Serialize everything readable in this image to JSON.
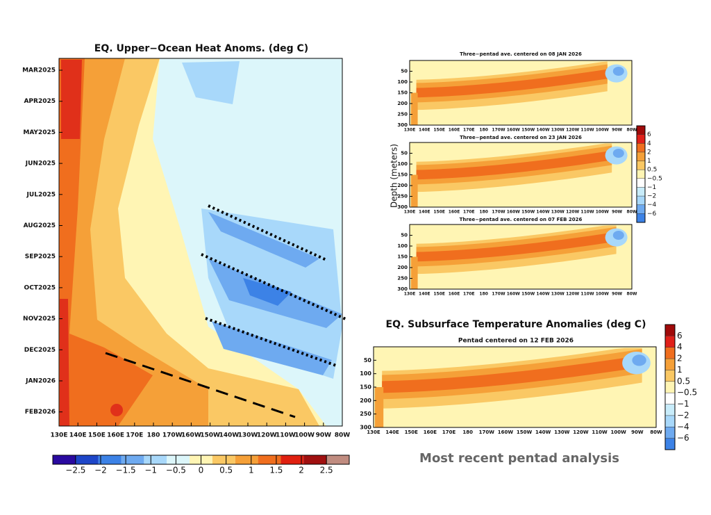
{
  "hovmoller": {
    "title": "EQ. Upper−Ocean Heat Anoms. (deg C)",
    "dates": [
      "MAR2025",
      "APR2025",
      "MAY2025",
      "JUN2025",
      "JUL2025",
      "AUG2025",
      "SEP2025",
      "OCT2025",
      "NOV2025",
      "DEC2025",
      "JAN2026",
      "FEB2026"
    ],
    "colorbar": {
      "ticks": [
        {
          "value": -2.5,
          "label": "−2.5"
        },
        {
          "value": -2,
          "label": "−2"
        },
        {
          "value": -1.5,
          "label": "−1.5"
        },
        {
          "value": -1,
          "label": "−1"
        },
        {
          "value": -0.5,
          "label": "−0.5"
        },
        0,
        0.5,
        1,
        1.5,
        2,
        2.5
      ]
    }
  },
  "longitudes": [
    "130E",
    "140E",
    "150E",
    "160E",
    "170E",
    "180",
    "170W",
    "160W",
    "150W",
    "140W",
    "130W",
    "120W",
    "110W",
    "100W",
    "90W",
    "80W"
  ],
  "depth_sections": {
    "y_label": "Depth (meters)",
    "depth_lim": [
      0,
      300
    ],
    "depth_ticks": [
      50,
      100,
      150,
      200,
      250,
      300
    ],
    "panels": [
      {
        "title": "Three−pentad ave. centered on 08 JAN 2026"
      },
      {
        "title": "Three−pentad ave. centered on 23 JAN 2026"
      },
      {
        "title": "Three−pentad ave. centered on 07 FEB 2026"
      }
    ],
    "colorbar": {
      "ticks": [
        6,
        4,
        2,
        1,
        0.5,
        {
          "value": -0.5,
          "label": "−0.5"
        },
        {
          "value": -1,
          "label": "−1"
        },
        {
          "value": -2,
          "label": "−2"
        },
        {
          "value": -4,
          "label": "−4"
        },
        {
          "value": -6,
          "label": "−6"
        }
      ]
    }
  },
  "latest": {
    "title": "EQ. Subsurface Temperature Anomalies (deg C)",
    "subtitle": "Pentad centered on 12 FEB 2026",
    "caption": "Most recent pentad analysis"
  }
}
